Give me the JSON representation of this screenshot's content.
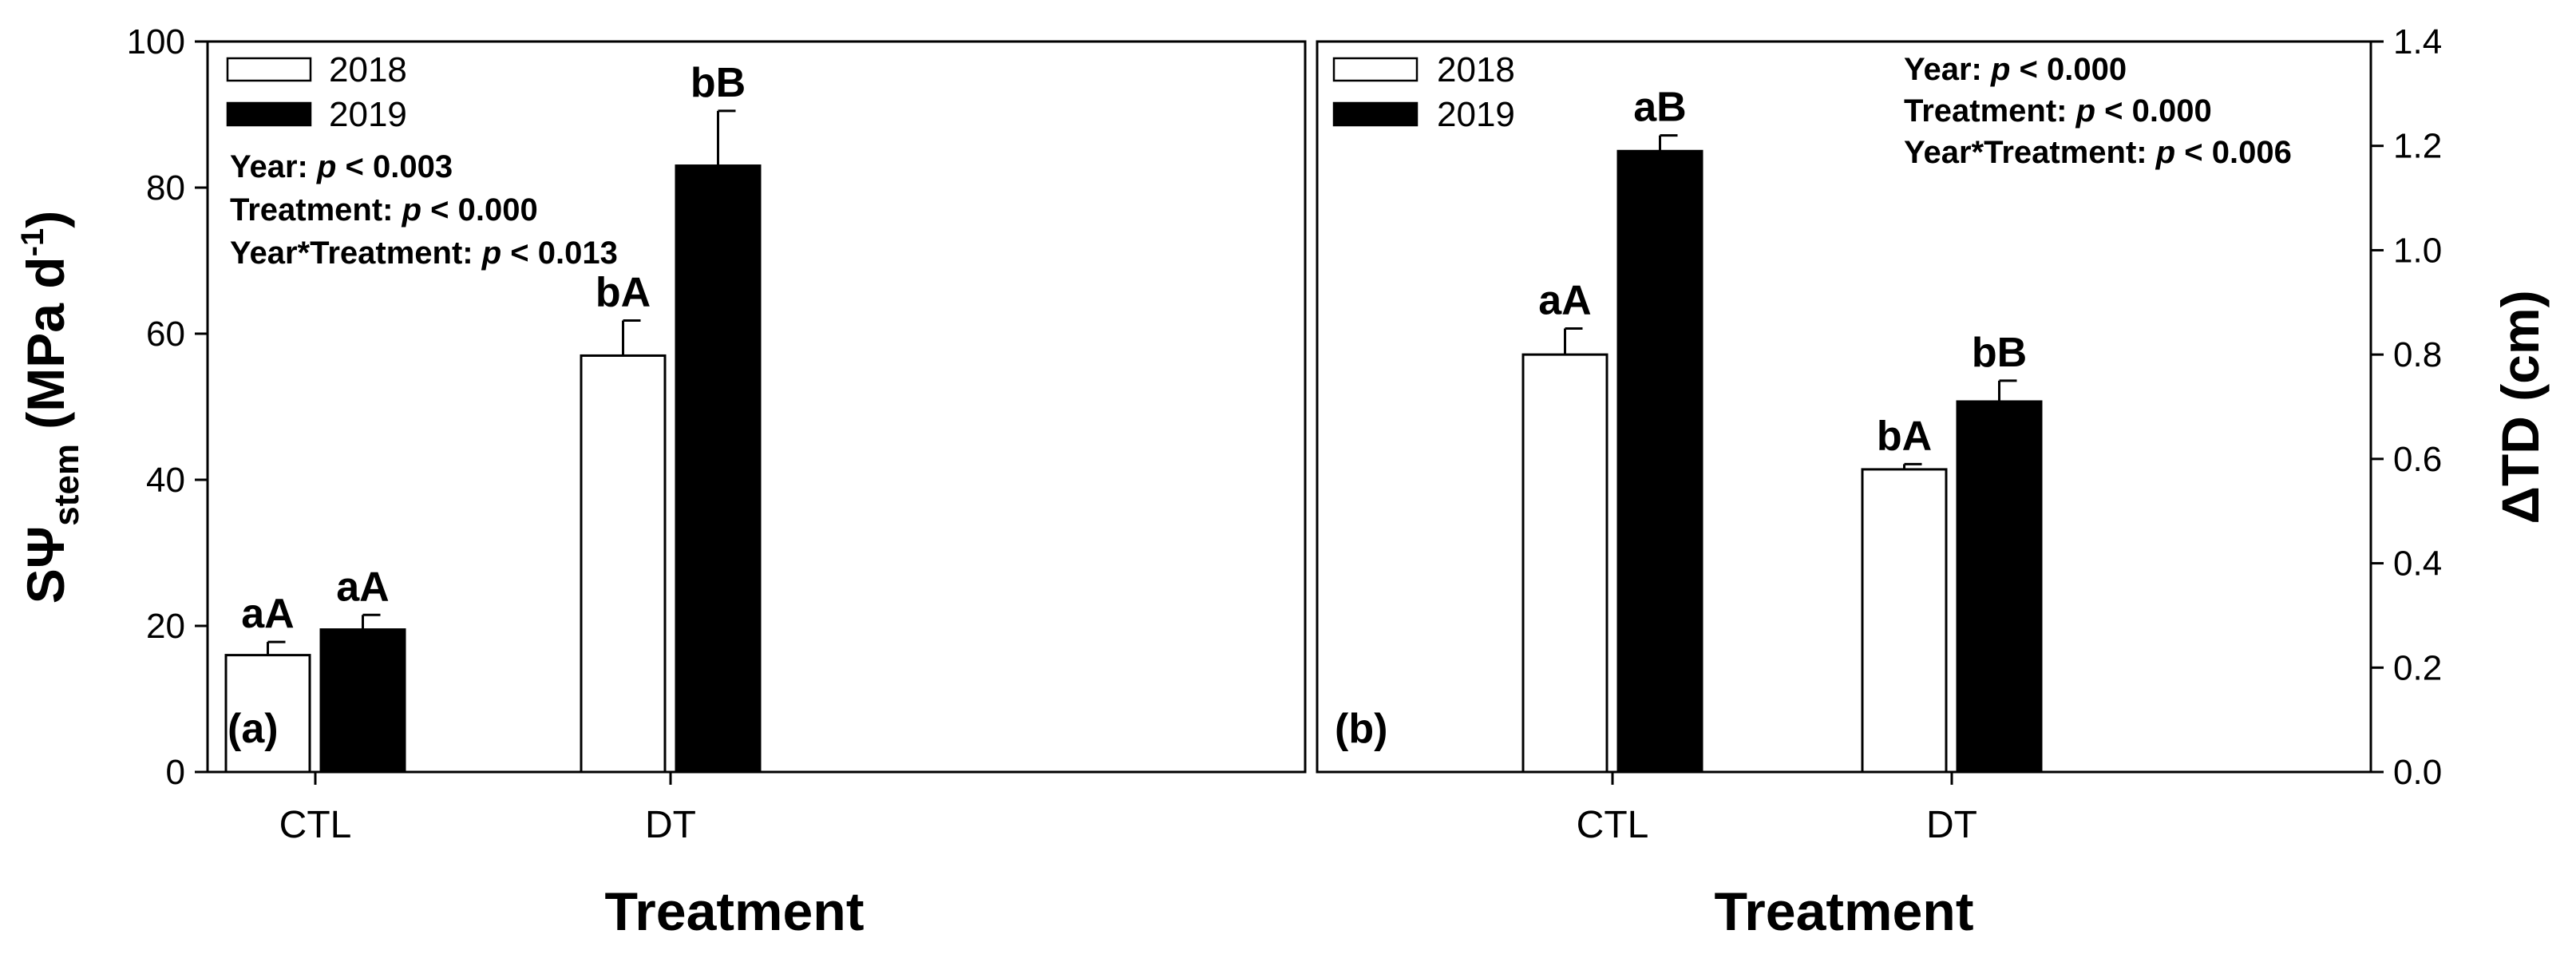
{
  "chart_data": [
    {
      "type": "bar",
      "panel": "(a)",
      "categories": [
        "CTL",
        "DT"
      ],
      "series": [
        {
          "name": "2018",
          "color": "#ffffff",
          "values": [
            16,
            57
          ],
          "errors": [
            1.8,
            4.8
          ],
          "labels": [
            "aA",
            "bA"
          ]
        },
        {
          "name": "2019",
          "color": "#000000",
          "values": [
            19.5,
            83
          ],
          "errors": [
            2.0,
            7.5
          ],
          "labels": [
            "aA",
            "bB"
          ]
        }
      ],
      "xlabel": "Treatment",
      "ylabel": {
        "main": "SΨ",
        "sub": "stem",
        "units": " (MPa d",
        "sup": "-1",
        "close": ")"
      },
      "ylim": [
        0,
        100
      ],
      "yticks": [
        "0",
        "20",
        "40",
        "60",
        "80",
        "100"
      ],
      "stats": [
        {
          "label": "Year: ",
          "p": "p",
          "value": " < 0.003"
        },
        {
          "label": "Treatment: ",
          "p": "p",
          "value": " < 0.000"
        },
        {
          "label": "Year*Treatment: ",
          "p": "p",
          "value": " < 0.013"
        }
      ]
    },
    {
      "type": "bar",
      "panel": "(b)",
      "categories": [
        "CTL",
        "DT"
      ],
      "series": [
        {
          "name": "2018",
          "color": "#ffffff",
          "values": [
            0.8,
            0.58
          ],
          "errors": [
            0.05,
            0.01
          ],
          "labels": [
            "aA",
            "bA"
          ]
        },
        {
          "name": "2019",
          "color": "#000000",
          "values": [
            1.19,
            0.71
          ],
          "errors": [
            0.03,
            0.04
          ],
          "labels": [
            "aB",
            "bB"
          ]
        }
      ],
      "xlabel": "Treatment",
      "ylabel": {
        "main": "ΔTD (cm)"
      },
      "ylim": [
        0,
        1.4
      ],
      "yticks": [
        "0.0",
        "0.2",
        "0.4",
        "0.6",
        "0.8",
        "1.0",
        "1.2",
        "1.4"
      ],
      "stats": [
        {
          "label": "Year: ",
          "p": "p",
          "value": " < 0.000"
        },
        {
          "label": "Treatment: ",
          "p": "p",
          "value": " < 0.000"
        },
        {
          "label": "Year*Treatment: ",
          "p": "p",
          "value": " < 0.006"
        }
      ]
    }
  ]
}
